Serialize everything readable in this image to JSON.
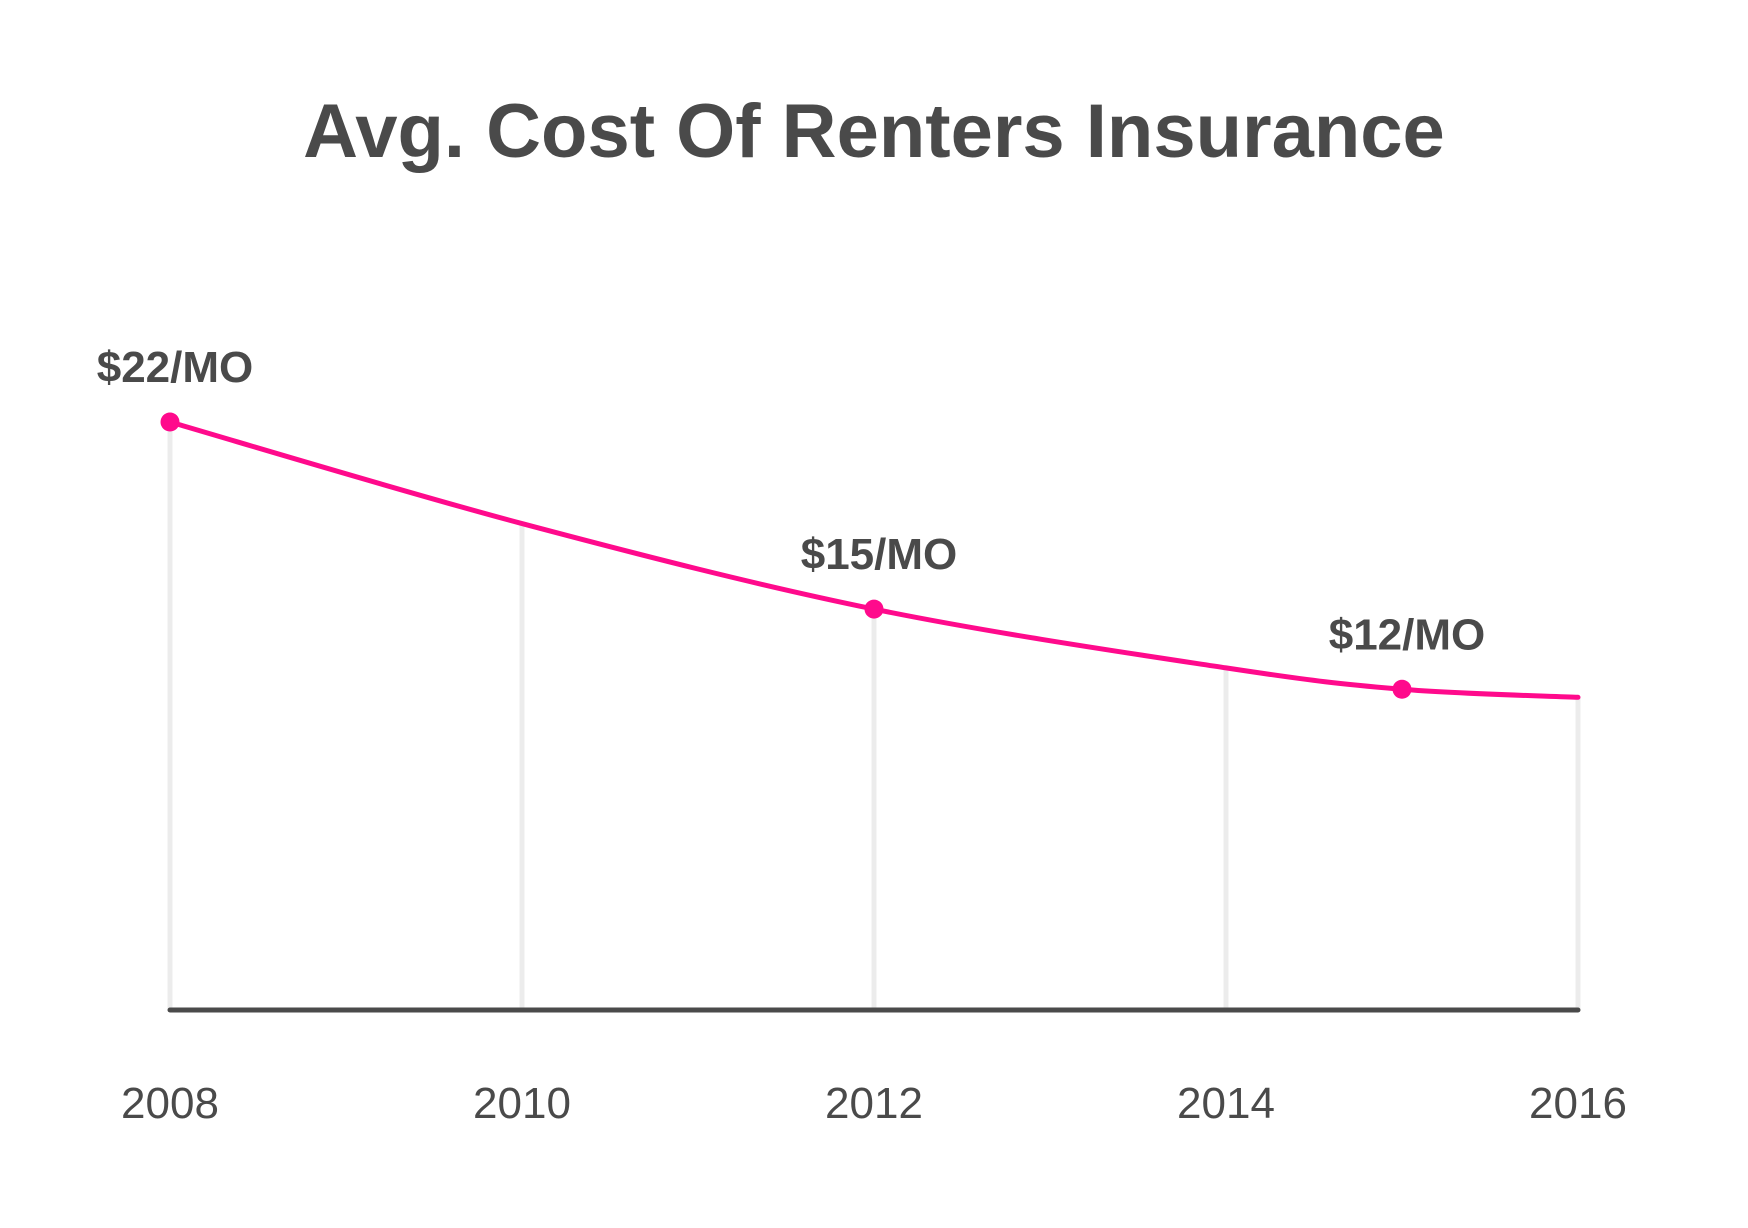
{
  "chart_data": {
    "type": "line",
    "title": "Avg. Cost Of Renters Insurance",
    "xlabel": "",
    "ylabel": "",
    "x_ticks": [
      "2008",
      "2010",
      "2012",
      "2014",
      "2016"
    ],
    "xlim": [
      2008,
      2016
    ],
    "ylim": [
      0,
      22
    ],
    "grid": "vertical",
    "colors": {
      "line": "#ff0a8c",
      "grid": "#ececec",
      "axis": "#4a4a4a",
      "text": "#4a4a4a"
    },
    "series": [
      {
        "points": [
          {
            "x": 2008,
            "y": 22,
            "label": "$22/MO"
          },
          {
            "x": 2010,
            "y": 18.2
          },
          {
            "x": 2012,
            "y": 15,
            "label": "$15/MO"
          },
          {
            "x": 2014,
            "y": 12.8
          },
          {
            "x": 2015,
            "y": 12,
            "label": "$12/MO"
          },
          {
            "x": 2016,
            "y": 11.7
          }
        ]
      }
    ]
  }
}
